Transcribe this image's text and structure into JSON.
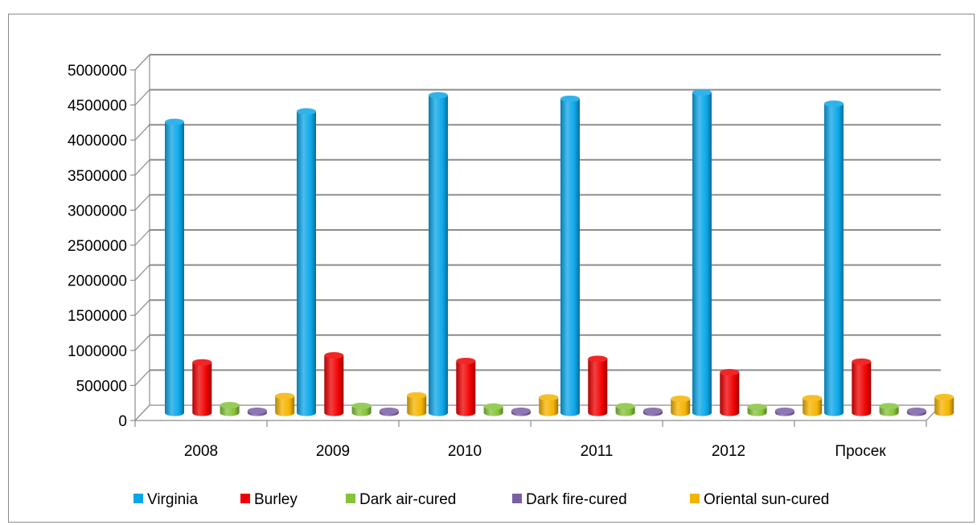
{
  "chart_data": {
    "type": "bar",
    "style": "3d-cylinder",
    "categories": [
      "2008",
      "2009",
      "2010",
      "2011",
      "2012",
      "Просек"
    ],
    "series": [
      {
        "name": "Virginia",
        "color": "#0BA6E8",
        "values": [
          4150000,
          4300000,
          4530000,
          4480000,
          4570000,
          4410000
        ]
      },
      {
        "name": "Burley",
        "color": "#F00000",
        "values": [
          720000,
          820000,
          740000,
          770000,
          580000,
          730000
        ]
      },
      {
        "name": "Dark air-cured",
        "color": "#86C33A",
        "values": [
          110000,
          100000,
          90000,
          95000,
          85000,
          95000
        ]
      },
      {
        "name": "Dark fire-cured",
        "color": "#7B5FA5",
        "values": [
          30000,
          30000,
          30000,
          30000,
          30000,
          30000
        ]
      },
      {
        "name": "Oriental sun-cured",
        "color": "#F5B400",
        "values": [
          240000,
          250000,
          220000,
          200000,
          210000,
          225000
        ]
      }
    ],
    "y_ticks": [
      "0",
      "500000",
      "1000000",
      "1500000",
      "2000000",
      "2500000",
      "3000000",
      "3500000",
      "4000000",
      "4500000",
      "5000000"
    ],
    "ylim": [
      0,
      5000000
    ],
    "grid": true,
    "legend_position": "bottom"
  }
}
